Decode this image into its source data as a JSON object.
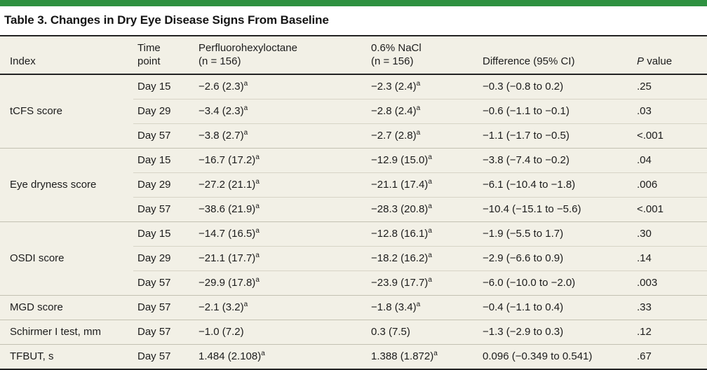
{
  "colors": {
    "accent_green": "#2e9140",
    "table_background": "#f2f0e6",
    "dark_rule": "#232323",
    "row_separator": "#d7d4c6"
  },
  "title": "Table 3. Changes in Dry Eye Disease Signs From Baseline",
  "table": {
    "columns": {
      "index": "Index",
      "time": "Time\npoint",
      "pfho": "Perfluorohexyloctane\n(n = 156)",
      "nacl": "0.6% NaCl\n(n = 156)",
      "diff": "Difference (95% CI)",
      "p_italic": "P",
      "p_rest": "value"
    },
    "footnote_marker": "a",
    "groups": [
      {
        "index": "tCFS score",
        "rows": [
          {
            "time": "Day 15",
            "pfho": "−2.6 (2.3)",
            "pfho_sup": "a",
            "nacl": "−2.3 (2.4)",
            "nacl_sup": "a",
            "diff": "−0.3 (−0.8 to 0.2)",
            "p": ".25"
          },
          {
            "time": "Day 29",
            "pfho": "−3.4 (2.3)",
            "pfho_sup": "a",
            "nacl": "−2.8 (2.4)",
            "nacl_sup": "a",
            "diff": "−0.6 (−1.1 to −0.1)",
            "p": ".03"
          },
          {
            "time": "Day 57",
            "pfho": "−3.8 (2.7)",
            "pfho_sup": "a",
            "nacl": "−2.7 (2.8)",
            "nacl_sup": "a",
            "diff": "−1.1 (−1.7 to −0.5)",
            "p": "<.001"
          }
        ]
      },
      {
        "index": "Eye dryness score",
        "rows": [
          {
            "time": "Day 15",
            "pfho": "−16.7 (17.2)",
            "pfho_sup": "a",
            "nacl": "−12.9 (15.0)",
            "nacl_sup": "a",
            "diff": "−3.8 (−7.4 to −0.2)",
            "p": ".04"
          },
          {
            "time": "Day 29",
            "pfho": "−27.2 (21.1)",
            "pfho_sup": "a",
            "nacl": "−21.1 (17.4)",
            "nacl_sup": "a",
            "diff": "−6.1 (−10.4 to −1.8)",
            "p": ".006"
          },
          {
            "time": "Day 57",
            "pfho": "−38.6 (21.9)",
            "pfho_sup": "a",
            "nacl": "−28.3 (20.8)",
            "nacl_sup": "a",
            "diff": "−10.4 (−15.1 to −5.6)",
            "p": "<.001"
          }
        ]
      },
      {
        "index": "OSDI score",
        "rows": [
          {
            "time": "Day 15",
            "pfho": "−14.7 (16.5)",
            "pfho_sup": "a",
            "nacl": "−12.8 (16.1)",
            "nacl_sup": "a",
            "diff": "−1.9 (−5.5 to 1.7)",
            "p": ".30"
          },
          {
            "time": "Day 29",
            "pfho": "−21.1 (17.7)",
            "pfho_sup": "a",
            "nacl": "−18.2 (16.2)",
            "nacl_sup": "a",
            "diff": "−2.9 (−6.6 to 0.9)",
            "p": ".14"
          },
          {
            "time": "Day 57",
            "pfho": "−29.9 (17.8)",
            "pfho_sup": "a",
            "nacl": "−23.9 (17.7)",
            "nacl_sup": "a",
            "diff": "−6.0 (−10.0 to −2.0)",
            "p": ".003"
          }
        ]
      },
      {
        "index": "MGD score",
        "rows": [
          {
            "time": "Day 57",
            "pfho": "−2.1 (3.2)",
            "pfho_sup": "a",
            "nacl": "−1.8 (3.4)",
            "nacl_sup": "a",
            "diff": "−0.4 (−1.1 to 0.4)",
            "p": ".33"
          }
        ]
      },
      {
        "index": "Schirmer I test, mm",
        "rows": [
          {
            "time": "Day 57",
            "pfho": "−1.0 (7.2)",
            "pfho_sup": null,
            "nacl": "0.3 (7.5)",
            "nacl_sup": null,
            "diff": "−1.3 (−2.9 to 0.3)",
            "p": ".12"
          }
        ]
      },
      {
        "index": "TFBUT, s",
        "rows": [
          {
            "time": "Day 57",
            "pfho": "1.484 (2.108)",
            "pfho_sup": "a",
            "nacl": "1.388 (1.872)",
            "nacl_sup": "a",
            "diff": "0.096 (−0.349 to 0.541)",
            "p": ".67"
          }
        ]
      }
    ]
  }
}
